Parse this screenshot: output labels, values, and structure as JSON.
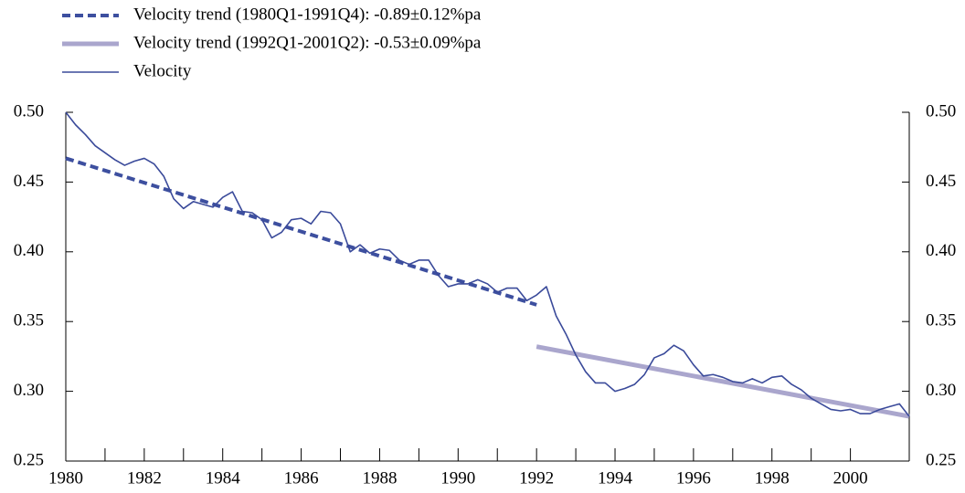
{
  "chart_data": {
    "type": "line",
    "xlim": [
      1980,
      2001.5
    ],
    "xticks": [
      1980,
      1982,
      1984,
      1986,
      1988,
      1990,
      1992,
      1994,
      1996,
      1998,
      2000
    ],
    "ylim": [
      0.25,
      0.5
    ],
    "yticks": [
      {
        "value": 0.25,
        "label": "0.25"
      },
      {
        "value": 0.3,
        "label": "0.30"
      },
      {
        "value": 0.35,
        "label": "0.35"
      },
      {
        "value": 0.4,
        "label": "0.40"
      },
      {
        "value": 0.45,
        "label": "0.45"
      },
      {
        "value": 0.5,
        "label": "0.50"
      }
    ],
    "y2lim": [
      0.25,
      0.5
    ],
    "y2ticks": [
      {
        "value": 0.25,
        "label": "0.25"
      },
      {
        "value": 0.3,
        "label": "0.30"
      },
      {
        "value": 0.35,
        "label": "0.35"
      },
      {
        "value": 0.4,
        "label": "0.40"
      },
      {
        "value": 0.45,
        "label": "0.45"
      },
      {
        "value": 0.5,
        "label": "0.50"
      }
    ],
    "grid": false,
    "series": [
      {
        "name": "Velocity trend (1980Q1-1991Q4): -0.89±0.12%pa",
        "color": "#3d4f9f",
        "style": "dashed",
        "width": 4,
        "x": [
          1980,
          1992
        ],
        "values": [
          0.467,
          0.362
        ]
      },
      {
        "name": "Velocity trend (1992Q1-2001Q2): -0.53±0.09%pa",
        "color": "#aaa6cd",
        "style": "solid",
        "width": 5,
        "x": [
          1992,
          2001.5
        ],
        "values": [
          0.332,
          0.282
        ]
      },
      {
        "name": "Velocity",
        "color": "#3a4a9a",
        "style": "solid",
        "width": 1.6,
        "x": [
          1980,
          1980.25,
          1980.5,
          1980.75,
          1981,
          1981.25,
          1981.5,
          1981.75,
          1982,
          1982.25,
          1982.5,
          1982.75,
          1983,
          1983.25,
          1983.5,
          1983.75,
          1984,
          1984.25,
          1984.5,
          1984.75,
          1985,
          1985.25,
          1985.5,
          1985.75,
          1986,
          1986.25,
          1986.5,
          1986.75,
          1987,
          1987.25,
          1987.5,
          1987.75,
          1988,
          1988.25,
          1988.5,
          1988.75,
          1989,
          1989.25,
          1989.5,
          1989.75,
          1990,
          1990.25,
          1990.5,
          1990.75,
          1991,
          1991.25,
          1991.5,
          1991.75,
          1992,
          1992.25,
          1992.5,
          1992.75,
          1993,
          1993.25,
          1993.5,
          1993.75,
          1994,
          1994.25,
          1994.5,
          1994.75,
          1995,
          1995.25,
          1995.5,
          1995.75,
          1996,
          1996.25,
          1996.5,
          1996.75,
          1997,
          1997.25,
          1997.5,
          1997.75,
          1998,
          1998.25,
          1998.5,
          1998.75,
          1999,
          1999.25,
          1999.5,
          1999.75,
          2000,
          2000.25,
          2000.5,
          2000.75,
          2001,
          2001.25,
          2001.5
        ],
        "values": [
          0.5,
          0.491,
          0.484,
          0.476,
          0.471,
          0.466,
          0.462,
          0.465,
          0.467,
          0.463,
          0.454,
          0.438,
          0.431,
          0.436,
          0.434,
          0.432,
          0.439,
          0.443,
          0.429,
          0.428,
          0.423,
          0.41,
          0.414,
          0.423,
          0.424,
          0.42,
          0.429,
          0.428,
          0.42,
          0.4,
          0.405,
          0.399,
          0.402,
          0.401,
          0.394,
          0.391,
          0.394,
          0.394,
          0.383,
          0.375,
          0.377,
          0.377,
          0.38,
          0.377,
          0.371,
          0.374,
          0.374,
          0.365,
          0.369,
          0.375,
          0.354,
          0.341,
          0.326,
          0.314,
          0.306,
          0.306,
          0.3,
          0.302,
          0.305,
          0.312,
          0.324,
          0.327,
          0.333,
          0.329,
          0.319,
          0.311,
          0.312,
          0.31,
          0.307,
          0.306,
          0.309,
          0.306,
          0.31,
          0.311,
          0.305,
          0.301,
          0.295,
          0.291,
          0.287,
          0.286,
          0.287,
          0.284,
          0.284,
          0.287,
          0.289,
          0.291,
          0.282
        ]
      }
    ]
  }
}
